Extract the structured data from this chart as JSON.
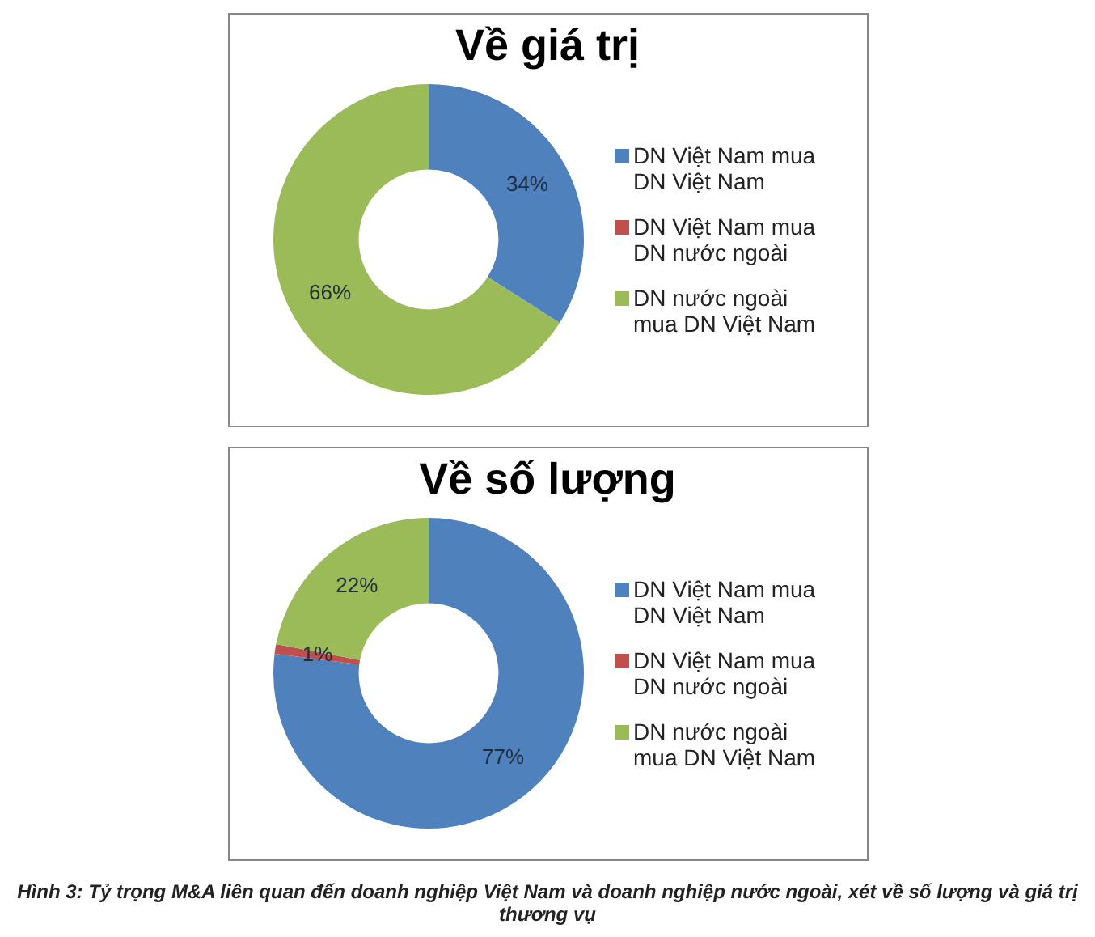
{
  "chart_data": [
    {
      "type": "donut",
      "title": "Về giá trị",
      "categories": [
        "DN Việt Nam mua DN Việt Nam",
        "DN Việt Nam mua DN nước ngoài",
        "DN nước ngoài mua DN Việt Nam"
      ],
      "values": [
        34,
        0,
        66
      ],
      "colors": [
        "#4f81bd",
        "#c0504d",
        "#9bbb59"
      ],
      "value_labels": [
        "34%",
        null,
        "66%"
      ],
      "legend": "right"
    },
    {
      "type": "donut",
      "title": "Về số lượng",
      "categories": [
        "DN Việt Nam mua DN Việt Nam",
        "DN Việt Nam mua DN nước ngoài",
        "DN nước ngoài mua DN Việt Nam"
      ],
      "values": [
        77,
        1,
        22
      ],
      "colors": [
        "#4f81bd",
        "#c0504d",
        "#9bbb59"
      ],
      "value_labels": [
        "77%",
        "1%",
        "22%"
      ],
      "legend": "right",
      "annotations": [
        "Hình 3: Tỷ trọng M&A liên quan đến doanh nghiệp Việt Nam và doanh nghiệp nước ngoài, xét về số lượng và giá trị thương vụ"
      ]
    }
  ]
}
